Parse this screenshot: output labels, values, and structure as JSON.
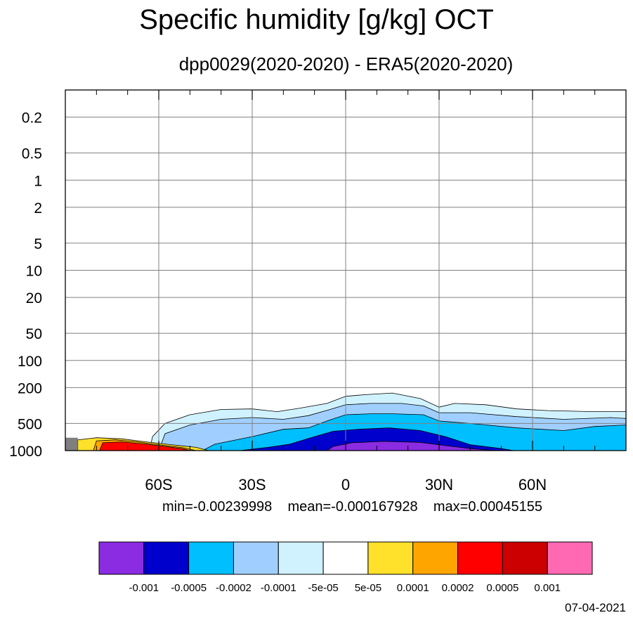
{
  "chart_data": {
    "type": "heatmap",
    "title": "Specific humidity [g/kg] OCT",
    "subtitle": "dpp0029(2020-2020) - ERA5(2020-2020)",
    "x_ticks": [
      {
        "value": -60,
        "label": "60S"
      },
      {
        "value": -30,
        "label": "30S"
      },
      {
        "value": 0,
        "label": "0"
      },
      {
        "value": 30,
        "label": "30N"
      },
      {
        "value": 60,
        "label": "60N"
      }
    ],
    "x_range": [
      -90,
      90
    ],
    "y_scale": "log",
    "y_range": [
      1000,
      0.1
    ],
    "y_ticks": [
      0.2,
      0.5,
      1,
      2,
      5,
      10,
      20,
      50,
      100,
      200,
      500,
      1000
    ],
    "y_tick_labels": [
      "0.2",
      "0.5",
      "1",
      "2",
      "5",
      "10",
      "20",
      "50",
      "100",
      "200",
      "500",
      "1000"
    ],
    "grid": true,
    "stats": {
      "min": "min=-0.00239998",
      "mean": "mean=-0.000167928",
      "max": "max=0.00045155"
    },
    "colorbar": {
      "colors": [
        "#8b2be2",
        "#0000cd",
        "#00bfff",
        "#a0cfff",
        "#d0f2ff",
        "#ffffff",
        "#ffe02a",
        "#ffa500",
        "#ff0000",
        "#cc0000",
        "#ff69b4"
      ],
      "labels": [
        "-0.001",
        "-0.0005",
        "-0.0002",
        "-0.0001",
        "-5e-05",
        "5e-05",
        "0.0001",
        "0.0002",
        "0.0005",
        "0.001"
      ]
    },
    "contours": [
      {
        "level": "-5e-05",
        "color": "#d0f2ff",
        "points": [
          [
            -63,
            1000
          ],
          [
            -62,
            700
          ],
          [
            -58,
            500
          ],
          [
            -50,
            400
          ],
          [
            -40,
            350
          ],
          [
            -30,
            345
          ],
          [
            -22,
            370
          ],
          [
            -15,
            340
          ],
          [
            -6,
            300
          ],
          [
            0,
            250
          ],
          [
            6,
            240
          ],
          [
            15,
            230
          ],
          [
            24,
            265
          ],
          [
            30,
            330
          ],
          [
            35,
            300
          ],
          [
            45,
            310
          ],
          [
            55,
            345
          ],
          [
            65,
            360
          ],
          [
            80,
            370
          ],
          [
            90,
            370
          ],
          [
            90,
            1000
          ]
        ]
      },
      {
        "level": "-0.0001",
        "color": "#a0cfff",
        "points": [
          [
            -60,
            1000
          ],
          [
            -58,
            650
          ],
          [
            -50,
            520
          ],
          [
            -40,
            450
          ],
          [
            -30,
            430
          ],
          [
            -20,
            450
          ],
          [
            -12,
            410
          ],
          [
            -5,
            350
          ],
          [
            0,
            310
          ],
          [
            8,
            300
          ],
          [
            18,
            300
          ],
          [
            25,
            320
          ],
          [
            30,
            380
          ],
          [
            40,
            380
          ],
          [
            55,
            420
          ],
          [
            70,
            450
          ],
          [
            85,
            430
          ],
          [
            90,
            440
          ],
          [
            90,
            1000
          ]
        ]
      },
      {
        "level": "-0.0002",
        "color": "#00bfff",
        "points": [
          [
            -46,
            1000
          ],
          [
            -42,
            850
          ],
          [
            -30,
            700
          ],
          [
            -20,
            580
          ],
          [
            -12,
            560
          ],
          [
            -6,
            470
          ],
          [
            0,
            400
          ],
          [
            8,
            390
          ],
          [
            15,
            390
          ],
          [
            25,
            400
          ],
          [
            30,
            470
          ],
          [
            40,
            500
          ],
          [
            55,
            560
          ],
          [
            70,
            600
          ],
          [
            80,
            540
          ],
          [
            90,
            520
          ],
          [
            90,
            1000
          ]
        ]
      },
      {
        "level": "-0.0005",
        "color": "#0000cd",
        "points": [
          [
            -34,
            1000
          ],
          [
            -25,
            920
          ],
          [
            -18,
            850
          ],
          [
            -10,
            700
          ],
          [
            -4,
            610
          ],
          [
            4,
            580
          ],
          [
            14,
            560
          ],
          [
            24,
            600
          ],
          [
            32,
            700
          ],
          [
            40,
            860
          ],
          [
            50,
            950
          ],
          [
            54,
            1000
          ]
        ]
      },
      {
        "level": "-0.001",
        "color": "#8b2be2",
        "points": [
          [
            -6,
            1000
          ],
          [
            -4,
            900
          ],
          [
            2,
            820
          ],
          [
            12,
            790
          ],
          [
            24,
            810
          ],
          [
            32,
            880
          ],
          [
            40,
            950
          ],
          [
            48,
            1000
          ]
        ]
      },
      {
        "level": "5e-05",
        "color": "#ffe02a",
        "points": [
          [
            -86,
            1000
          ],
          [
            -86,
            760
          ],
          [
            -80,
            720
          ],
          [
            -72,
            740
          ],
          [
            -64,
            800
          ],
          [
            -56,
            860
          ],
          [
            -48,
            920
          ],
          [
            -44,
            1000
          ]
        ]
      },
      {
        "level": "0.0001",
        "color": "#ffa500",
        "points": [
          [
            -81,
            1000
          ],
          [
            -80,
            780
          ],
          [
            -74,
            760
          ],
          [
            -67,
            800
          ],
          [
            -60,
            860
          ],
          [
            -52,
            930
          ],
          [
            -48,
            1000
          ]
        ]
      },
      {
        "level": "0.0002",
        "color": "#ff0000",
        "points": [
          [
            -79,
            1000
          ],
          [
            -78,
            820
          ],
          [
            -72,
            800
          ],
          [
            -64,
            850
          ],
          [
            -58,
            900
          ],
          [
            -52,
            960
          ],
          [
            -50,
            1000
          ]
        ]
      }
    ],
    "missing_patch": {
      "x": [
        -90,
        -86
      ],
      "y": [
        720,
        1000
      ],
      "color": "#7f7f7f"
    }
  },
  "footer": {
    "date": "07-04-2021"
  }
}
